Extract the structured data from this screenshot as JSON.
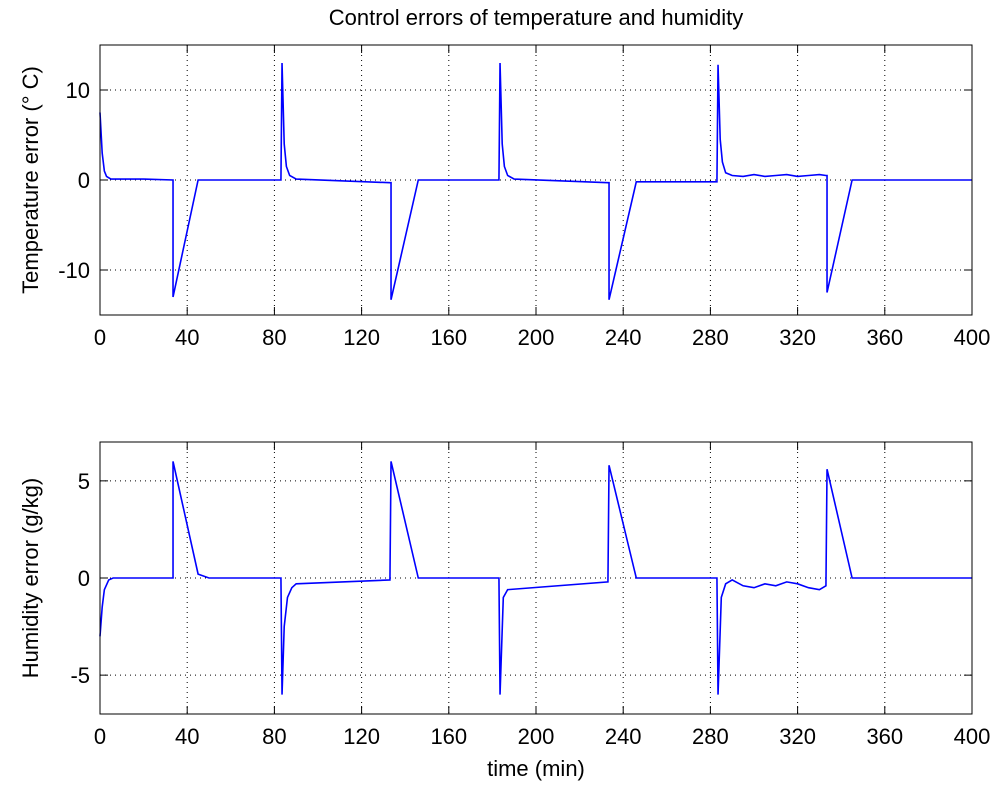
{
  "chart_data": [
    {
      "type": "line",
      "title": "Control errors of temperature and humidity",
      "ylabel": "Temperature error (° C)",
      "xlim": [
        0,
        400
      ],
      "xticks": [
        0,
        40,
        80,
        120,
        160,
        200,
        240,
        280,
        320,
        360,
        400
      ],
      "ylim": [
        -15,
        15
      ],
      "yticks": [
        -10,
        0,
        10
      ],
      "grid": true,
      "series": [
        {
          "color": "#0000ff",
          "x": [
            0,
            1,
            2,
            3,
            5,
            20,
            33.5,
            33.5,
            45,
            83,
            83.5,
            84.5,
            85.5,
            87,
            90,
            133,
            133.5,
            133.5,
            146,
            183,
            183.5,
            184.5,
            185.5,
            187,
            190,
            233,
            233.5,
            233.5,
            246,
            283,
            283.5,
            284.5,
            285.5,
            287,
            290,
            295,
            300,
            305,
            310,
            315,
            320,
            325,
            330,
            333,
            333.5,
            333.5,
            345,
            400
          ],
          "values": [
            7.5,
            3,
            1,
            0.4,
            0.1,
            0.1,
            0,
            -13,
            0,
            0,
            13,
            4,
            1.5,
            0.5,
            0.1,
            -0.3,
            -0.3,
            -13.3,
            0,
            0,
            13,
            4,
            1.5,
            0.5,
            0.1,
            -0.3,
            -0.3,
            -13.3,
            -0.2,
            -0.2,
            12.8,
            4.5,
            2,
            0.8,
            0.5,
            0.4,
            0.6,
            0.4,
            0.5,
            0.6,
            0.4,
            0.5,
            0.6,
            0.5,
            0.5,
            -12.5,
            0,
            0
          ]
        }
      ]
    },
    {
      "type": "line",
      "xlabel": "time (min)",
      "ylabel": "Humidity error (g/kg)",
      "xlim": [
        0,
        400
      ],
      "xticks": [
        0,
        40,
        80,
        120,
        160,
        200,
        240,
        280,
        320,
        360,
        400
      ],
      "ylim": [
        -7,
        7
      ],
      "yticks": [
        -5,
        0,
        5
      ],
      "grid": true,
      "series": [
        {
          "color": "#0000ff",
          "x": [
            0,
            1,
            2,
            4,
            6,
            33.5,
            33.5,
            45,
            50,
            83,
            83.5,
            84.5,
            86,
            88,
            90,
            133,
            133.5,
            146,
            183,
            183.5,
            185,
            187,
            233,
            233.5,
            246,
            283,
            283.5,
            285,
            287,
            290,
            295,
            300,
            305,
            310,
            315,
            320,
            325,
            330,
            333,
            333.5,
            345,
            400
          ],
          "values": [
            -3,
            -1.5,
            -0.6,
            -0.1,
            0,
            0,
            6,
            0.2,
            0,
            0,
            -6,
            -2.5,
            -1,
            -0.5,
            -0.3,
            -0.1,
            6,
            0,
            0,
            -6,
            -1,
            -0.6,
            -0.2,
            5.8,
            0,
            0,
            -6,
            -1,
            -0.3,
            -0.1,
            -0.4,
            -0.5,
            -0.3,
            -0.4,
            -0.2,
            -0.3,
            -0.5,
            -0.6,
            -0.4,
            5.6,
            0,
            0
          ]
        }
      ]
    }
  ]
}
